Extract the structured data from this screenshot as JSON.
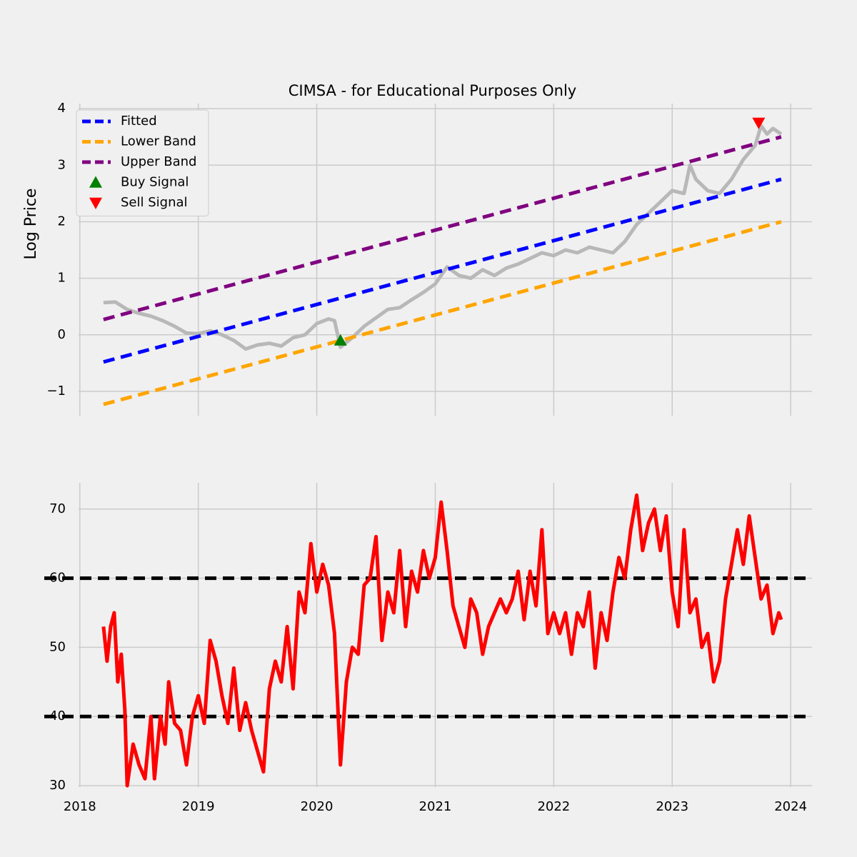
{
  "chart_data": [
    {
      "type": "line",
      "title": "CIMSA - for Educational Purposes Only",
      "y_label": "Log Price",
      "xlim": [
        2017.7,
        2024.18
      ],
      "ylim": [
        -1.43,
        4.09
      ],
      "xticks": [
        2018,
        2019,
        2020,
        2021,
        2022,
        2023,
        2024
      ],
      "yticks": [
        {
          "value": -1,
          "label": "−1"
        },
        0,
        1,
        2,
        3,
        4
      ],
      "grid": true,
      "legend": "upper left",
      "series": [
        {
          "color": "#b8b8b8",
          "x": [
            2018.2,
            2018.3,
            2018.4,
            2018.5,
            2018.6,
            2018.7,
            2018.8,
            2018.9,
            2019.0,
            2019.1,
            2019.2,
            2019.3,
            2019.4,
            2019.5,
            2019.6,
            2019.7,
            2019.8,
            2019.9,
            2020.0,
            2020.1,
            2020.15,
            2020.2,
            2020.3,
            2020.4,
            2020.5,
            2020.6,
            2020.7,
            2020.8,
            2020.9,
            2021.0,
            2021.1,
            2021.2,
            2021.3,
            2021.4,
            2021.5,
            2021.6,
            2021.7,
            2021.8,
            2021.9,
            2022.0,
            2022.1,
            2022.2,
            2022.3,
            2022.4,
            2022.5,
            2022.6,
            2022.7,
            2022.8,
            2022.9,
            2023.0,
            2023.1,
            2023.15,
            2023.2,
            2023.3,
            2023.4,
            2023.5,
            2023.6,
            2023.7,
            2023.75,
            2023.8,
            2023.85,
            2023.92
          ],
          "values": [
            0.57,
            0.58,
            0.45,
            0.38,
            0.33,
            0.25,
            0.15,
            0.03,
            0.02,
            0.07,
            0.0,
            -0.1,
            -0.25,
            -0.18,
            -0.15,
            -0.2,
            -0.05,
            0.0,
            0.2,
            0.28,
            0.25,
            -0.22,
            -0.05,
            0.15,
            0.3,
            0.45,
            0.48,
            0.62,
            0.75,
            0.9,
            1.2,
            1.05,
            1.0,
            1.15,
            1.05,
            1.18,
            1.25,
            1.35,
            1.45,
            1.4,
            1.5,
            1.45,
            1.55,
            1.5,
            1.45,
            1.65,
            1.95,
            2.15,
            2.35,
            2.55,
            2.5,
            3.0,
            2.75,
            2.55,
            2.5,
            2.75,
            3.1,
            3.35,
            3.7,
            3.55,
            3.65,
            3.55
          ]
        },
        {
          "name": "Fitted",
          "color": "#0000ff",
          "dashed": true,
          "x": [
            2018.2,
            2023.92
          ],
          "values": [
            -0.48,
            2.75
          ]
        },
        {
          "name": "Lower Band",
          "color": "#ffa500",
          "dashed": true,
          "x": [
            2018.2,
            2023.92
          ],
          "values": [
            -1.23,
            2.0
          ]
        },
        {
          "name": "Upper Band",
          "color": "#800080",
          "dashed": true,
          "x": [
            2018.2,
            2023.92
          ],
          "values": [
            0.27,
            3.5
          ]
        },
        {
          "name": "Buy Signal",
          "color": "#008000",
          "marker": "up",
          "x": [
            2020.2
          ],
          "values": [
            -0.1
          ]
        },
        {
          "name": "Sell Signal",
          "color": "#ff0000",
          "marker": "down",
          "x": [
            2023.73
          ],
          "values": [
            3.75
          ]
        }
      ]
    },
    {
      "type": "line",
      "xlim": [
        2017.7,
        2024.18
      ],
      "ylim": [
        29.8,
        73.8
      ],
      "xticks": [
        2018,
        2019,
        2020,
        2021,
        2022,
        2023,
        2024
      ],
      "yticks": [
        30,
        40,
        50,
        60,
        70
      ],
      "grid": true,
      "hlines": [
        {
          "value": 60,
          "color": "#000000"
        },
        {
          "value": 40,
          "color": "#000000"
        }
      ],
      "series": [
        {
          "color": "#ff0000",
          "x": [
            2018.2,
            2018.23,
            2018.26,
            2018.29,
            2018.32,
            2018.35,
            2018.38,
            2018.4,
            2018.45,
            2018.5,
            2018.55,
            2018.6,
            2018.63,
            2018.68,
            2018.72,
            2018.75,
            2018.8,
            2018.85,
            2018.9,
            2018.95,
            2019.0,
            2019.05,
            2019.1,
            2019.15,
            2019.2,
            2019.25,
            2019.3,
            2019.35,
            2019.4,
            2019.45,
            2019.5,
            2019.55,
            2019.6,
            2019.65,
            2019.7,
            2019.75,
            2019.8,
            2019.85,
            2019.9,
            2019.95,
            2020.0,
            2020.05,
            2020.1,
            2020.15,
            2020.2,
            2020.25,
            2020.3,
            2020.35,
            2020.4,
            2020.45,
            2020.5,
            2020.55,
            2020.6,
            2020.65,
            2020.7,
            2020.75,
            2020.8,
            2020.85,
            2020.9,
            2020.95,
            2021.0,
            2021.05,
            2021.1,
            2021.15,
            2021.2,
            2021.25,
            2021.3,
            2021.35,
            2021.4,
            2021.45,
            2021.5,
            2021.55,
            2021.6,
            2021.65,
            2021.7,
            2021.75,
            2021.8,
            2021.85,
            2021.9,
            2021.95,
            2022.0,
            2022.05,
            2022.1,
            2022.15,
            2022.2,
            2022.25,
            2022.3,
            2022.35,
            2022.4,
            2022.45,
            2022.5,
            2022.55,
            2022.6,
            2022.65,
            2022.7,
            2022.75,
            2022.8,
            2022.85,
            2022.9,
            2022.95,
            2023.0,
            2023.05,
            2023.1,
            2023.15,
            2023.2,
            2023.25,
            2023.3,
            2023.35,
            2023.4,
            2023.45,
            2023.5,
            2023.55,
            2023.6,
            2023.65,
            2023.7,
            2023.75,
            2023.8,
            2023.85,
            2023.9,
            2023.92
          ],
          "values": [
            53,
            48,
            53,
            55,
            45,
            49,
            41,
            30,
            36,
            33,
            31,
            40,
            31,
            40,
            36,
            45,
            39,
            38,
            33,
            40,
            43,
            39,
            51,
            48,
            43,
            39,
            47,
            38,
            42,
            38,
            35,
            32,
            44,
            48,
            45,
            53,
            44,
            58,
            55,
            65,
            58,
            62,
            59,
            52,
            33,
            45,
            50,
            49,
            59,
            60,
            66,
            51,
            58,
            55,
            64,
            53,
            61,
            58,
            64,
            60,
            63,
            71,
            64,
            56,
            53,
            50,
            57,
            55,
            49,
            53,
            55,
            57,
            55,
            57,
            61,
            54,
            61,
            56,
            67,
            52,
            55,
            52,
            55,
            49,
            55,
            53,
            58,
            47,
            55,
            51,
            58,
            63,
            60,
            67,
            72,
            64,
            68,
            70,
            64,
            69,
            58,
            53,
            67,
            55,
            57,
            50,
            52,
            45,
            48,
            57,
            62,
            67,
            62,
            69,
            63,
            57,
            59,
            52,
            55,
            54
          ]
        }
      ]
    }
  ]
}
